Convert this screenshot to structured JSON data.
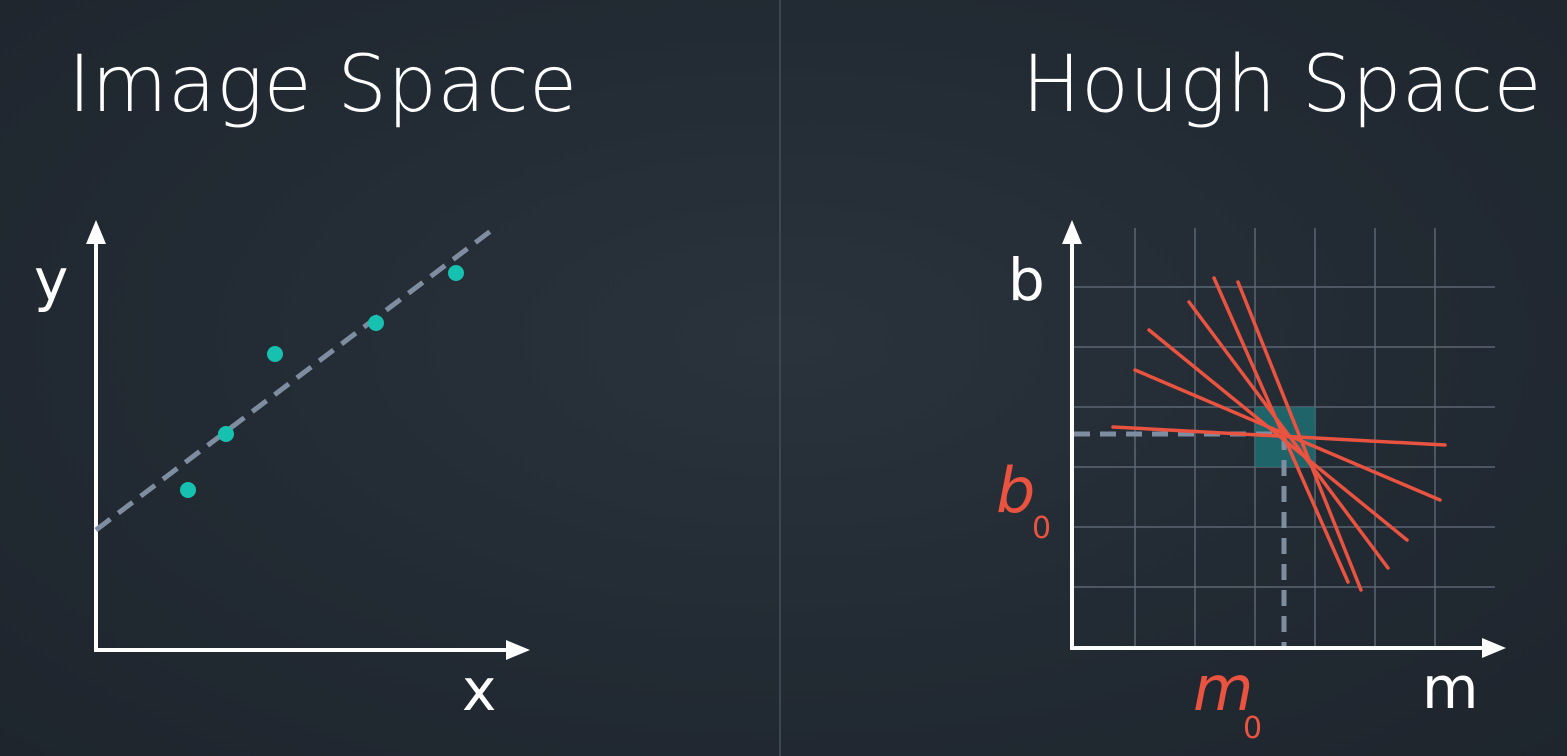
{
  "left_panel": {
    "title": "Image Space",
    "x_axis_label": "x",
    "y_axis_label": "y",
    "point_color": "#17c1b0",
    "line_color": "#7f8da0"
  },
  "right_panel": {
    "title": "Hough Space",
    "x_axis_label": "m",
    "y_axis_label": "b",
    "b0_label": "b",
    "b0_subscript": "0",
    "m0_label": "m",
    "m0_subscript": "0",
    "line_color": "#e9533f",
    "highlight_color": "#1f6f72",
    "grid_color": "#5a6673"
  }
}
